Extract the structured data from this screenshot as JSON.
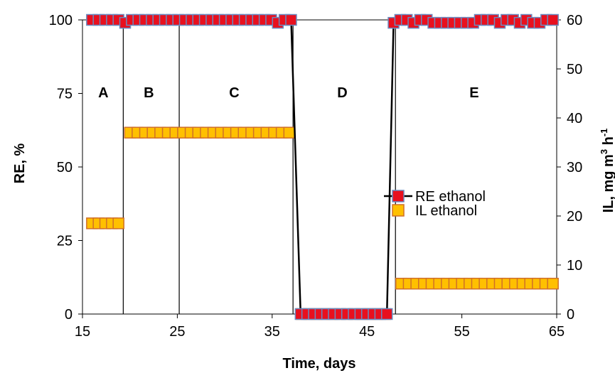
{
  "chart_data": {
    "type": "line",
    "title": "",
    "xlabel": "Time, days",
    "ylabel_left": "RE, %",
    "ylabel_right_main": "IL, mg m",
    "ylabel_right_sup1": "3",
    "ylabel_right_mid": " h",
    "ylabel_right_sup2": "-1",
    "xlim": [
      15,
      65
    ],
    "ylim_left": [
      0,
      100
    ],
    "ylim_right": [
      0,
      60
    ],
    "x_ticks": [
      15,
      25,
      35,
      45,
      55,
      65
    ],
    "y_left_ticks": [
      0,
      25,
      50,
      75,
      100
    ],
    "y_right_ticks": [
      0,
      10,
      20,
      30,
      40,
      50,
      60
    ],
    "grid": false,
    "legend_position": "right",
    "phase_boundaries": [
      19.3,
      25.2,
      37.2,
      48.0
    ],
    "phases": [
      {
        "label": "A",
        "x": 17.2
      },
      {
        "label": "B",
        "x": 22.0
      },
      {
        "label": "C",
        "x": 31.0
      },
      {
        "label": "D",
        "x": 42.4
      },
      {
        "label": "E",
        "x": 56.3
      }
    ],
    "series": [
      {
        "name": "RE ethanol",
        "axis": "left",
        "color": "#E8101E",
        "edge": "#6A8AC0",
        "line": true,
        "x": [
          16,
          16.7,
          17.4,
          18.1,
          18.8,
          19.5,
          20.2,
          20.9,
          21.6,
          22.3,
          23.0,
          23.7,
          24.4,
          25.1,
          25.8,
          26.5,
          27.2,
          27.9,
          28.6,
          29.3,
          30.0,
          30.7,
          31.4,
          32.1,
          32.8,
          33.5,
          34.2,
          34.9,
          35.6,
          36.3,
          37.0,
          38.0,
          38.7,
          39.4,
          40.1,
          40.8,
          41.5,
          42.2,
          42.9,
          43.6,
          44.3,
          45.0,
          45.7,
          46.4,
          47.1,
          47.8,
          48.5,
          49.2,
          49.9,
          50.6,
          51.3,
          52.0,
          52.7,
          53.4,
          54.1,
          54.8,
          55.5,
          56.2,
          56.9,
          57.6,
          58.3,
          59.0,
          59.7,
          60.4,
          61.1,
          61.8,
          62.5,
          63.2,
          63.9,
          64.6
        ],
        "values": [
          100,
          100,
          100,
          100,
          100,
          99,
          100,
          100,
          100,
          100,
          100,
          100,
          100,
          100,
          100,
          100,
          100,
          100,
          100,
          100,
          100,
          100,
          100,
          100,
          100,
          100,
          100,
          100,
          99,
          100,
          100,
          0,
          0,
          0,
          0,
          0,
          0,
          0,
          0,
          0,
          0,
          0,
          0,
          0,
          0,
          99,
          100,
          100,
          99,
          100,
          100,
          99,
          99,
          99,
          99,
          99,
          99,
          99,
          100,
          100,
          100,
          99,
          100,
          100,
          99,
          100,
          99,
          99,
          100,
          100
        ]
      },
      {
        "name": "IL ethanol",
        "axis": "right",
        "color": "#FFC000",
        "edge": "#D07028",
        "line": false,
        "x": [
          16,
          16.7,
          17.4,
          18.1,
          18.8,
          20.0,
          20.8,
          21.6,
          22.4,
          23.2,
          24.0,
          24.8,
          25.6,
          26.4,
          27.2,
          28.0,
          28.8,
          29.6,
          30.4,
          31.2,
          32.0,
          32.8,
          33.6,
          34.4,
          35.2,
          36.0,
          36.8,
          38.1,
          38.9,
          39.7,
          40.5,
          41.3,
          42.1,
          42.9,
          43.7,
          44.5,
          45.3,
          46.1,
          46.9,
          48.6,
          49.4,
          50.2,
          51.0,
          51.8,
          52.6,
          53.4,
          54.2,
          55.0,
          55.8,
          56.6,
          57.4,
          58.2,
          59.0,
          59.8,
          60.6,
          61.4,
          62.2,
          63.0,
          63.8,
          64.6
        ],
        "values": [
          18.5,
          18.5,
          18.5,
          18.5,
          18.5,
          37,
          37,
          37,
          37,
          37,
          37,
          37,
          37,
          37,
          37,
          37,
          37,
          37,
          37,
          37,
          37,
          37,
          37,
          37,
          37,
          37,
          37,
          0,
          0,
          0,
          0,
          0,
          0,
          0,
          0,
          0,
          0,
          0,
          0,
          6.2,
          6.2,
          6.2,
          6.2,
          6.2,
          6.2,
          6.2,
          6.2,
          6.2,
          6.2,
          6.2,
          6.2,
          6.2,
          6.2,
          6.2,
          6.2,
          6.2,
          6.2,
          6.2,
          6.2,
          6.2
        ]
      }
    ]
  }
}
